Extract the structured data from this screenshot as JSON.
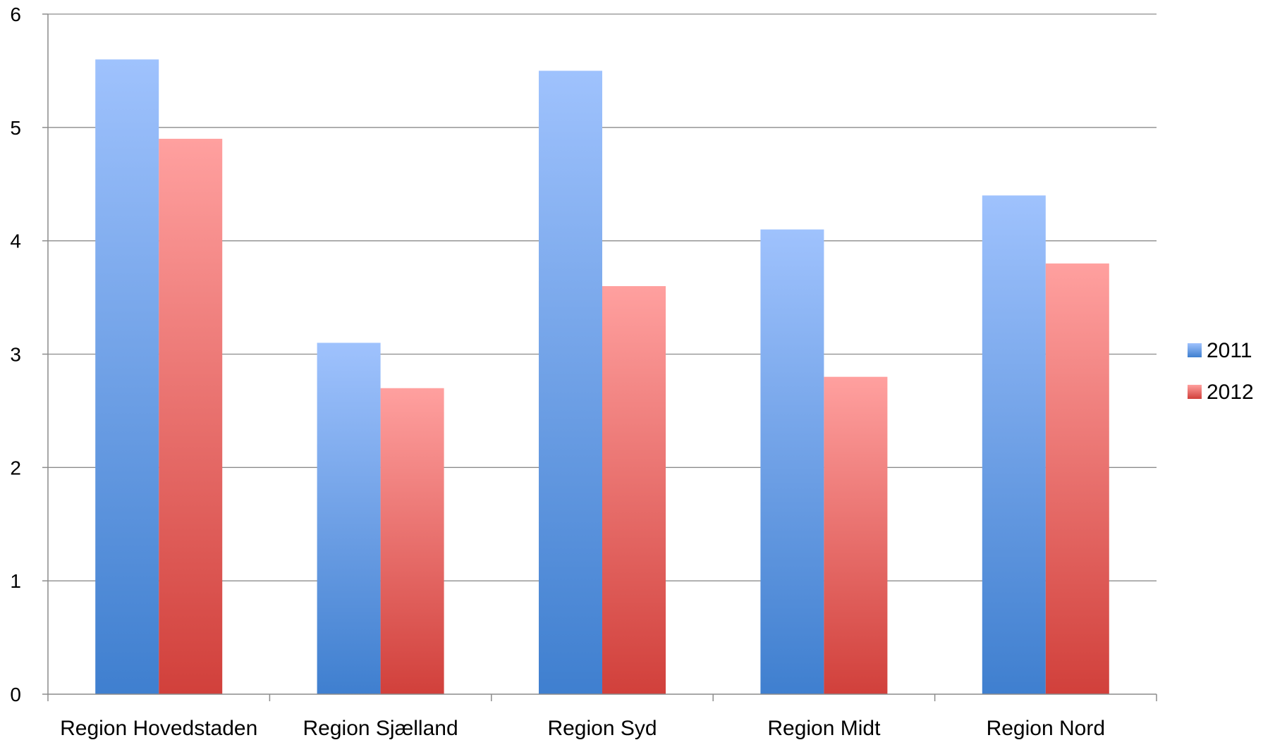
{
  "chart_data": {
    "type": "bar",
    "title": "",
    "xlabel": "",
    "ylabel": "",
    "categories": [
      "Region Hovedstaden",
      "Region Sjælland",
      "Region Syd",
      "Region Midt",
      "Region Nord"
    ],
    "series": [
      {
        "name": "2011",
        "values": [
          5.6,
          3.1,
          5.5,
          4.1,
          4.4
        ],
        "color_top": "#9fc2fd",
        "color_bottom": "#3f7fcf"
      },
      {
        "name": "2012",
        "values": [
          4.9,
          2.7,
          3.6,
          2.8,
          3.8
        ],
        "color_top": "#ffa09f",
        "color_bottom": "#d1403b"
      }
    ],
    "ylim": [
      0,
      6
    ],
    "yticks": [
      "0",
      "1",
      "2",
      "3",
      "4",
      "5",
      "6"
    ],
    "grid": true,
    "legend_position": "right"
  }
}
